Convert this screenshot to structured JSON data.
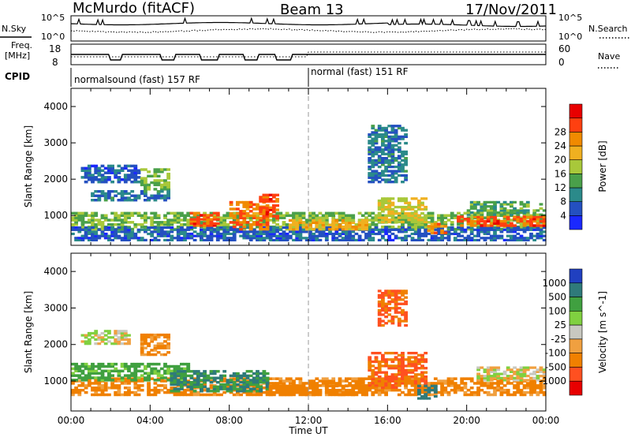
{
  "header": {
    "station": "McMurdo (fitACF)",
    "beam": "Beam 13",
    "date": "17/Nov/2011"
  },
  "top_panels": {
    "nsky_label": "N.Sky",
    "nsky_ticks": [
      "10^5",
      "10^0"
    ],
    "nsearch_label": "N.Search",
    "nsearch_ticks": [
      "10^5",
      "10^0"
    ],
    "freq_label": "Freq.",
    "freq_unit": "[MHz]",
    "freq_ticks": [
      "18",
      "8"
    ],
    "nave_label": "Nave",
    "nave_ticks": [
      "60",
      "0"
    ],
    "cpid_label": "CPID",
    "cpid_segments": [
      {
        "label": "normalsound (fast) 157 RF",
        "start_hour": 0
      },
      {
        "label": "normal (fast) 151 RF",
        "start_hour": 12
      }
    ]
  },
  "x_axis": {
    "label": "Time UT",
    "ticks": [
      "00:00",
      "04:00",
      "08:00",
      "12:00",
      "16:00",
      "20:00",
      "00:00"
    ]
  },
  "chart_data": [
    {
      "type": "heatmap",
      "title": "",
      "ylabel": "Slant Range [km]",
      "xlabel": "Time UT",
      "xlim": [
        0,
        24
      ],
      "ylim": [
        180,
        4500
      ],
      "yticks": [
        "1000",
        "2000",
        "3000",
        "4000"
      ],
      "colorbar_label": "Power [dB]",
      "colorbar_ticks": [
        "4",
        "8",
        "12",
        "16",
        "20",
        "24",
        "28"
      ],
      "colorbar_colors": [
        "#1a28ff",
        "#2450c0",
        "#2b8a8a",
        "#4aa04a",
        "#a8c83a",
        "#f0b020",
        "#f08a00",
        "#ff4010",
        "#e80000"
      ],
      "regions": [
        {
          "t": [
            0.0,
            24.0
          ],
          "r": [
            600,
            1100
          ],
          "v": 14
        },
        {
          "t": [
            0.0,
            24.0
          ],
          "r": [
            300,
            700
          ],
          "v": 6
        },
        {
          "t": [
            0.5,
            3.5
          ],
          "r": [
            1900,
            2400
          ],
          "v": 6
        },
        {
          "t": [
            3.5,
            5.0
          ],
          "r": [
            1700,
            2300
          ],
          "v": 14
        },
        {
          "t": [
            1.0,
            5.0
          ],
          "r": [
            1400,
            1700
          ],
          "v": 8
        },
        {
          "t": [
            6.0,
            7.5
          ],
          "r": [
            700,
            1100
          ],
          "v": 26
        },
        {
          "t": [
            8.0,
            10.0
          ],
          "r": [
            600,
            1400
          ],
          "v": 24
        },
        {
          "t": [
            9.5,
            10.5
          ],
          "r": [
            900,
            1600
          ],
          "v": 26
        },
        {
          "t": [
            15.0,
            17.0
          ],
          "r": [
            1900,
            3500
          ],
          "v": 8
        },
        {
          "t": [
            15.5,
            18.0
          ],
          "r": [
            800,
            1500
          ],
          "v": 18
        },
        {
          "t": [
            18.0,
            19.0
          ],
          "r": [
            500,
            800
          ],
          "v": 24
        },
        {
          "t": [
            19.5,
            24.0
          ],
          "r": [
            700,
            1000
          ],
          "v": 26
        },
        {
          "t": [
            20.0,
            24.0
          ],
          "r": [
            1000,
            1400
          ],
          "v": 12
        },
        {
          "t": [
            11.0,
            15.0
          ],
          "r": [
            600,
            900
          ],
          "v": 20
        }
      ]
    },
    {
      "type": "heatmap",
      "title": "",
      "ylabel": "Slant Range [km]",
      "xlabel": "Time UT",
      "xlim": [
        0,
        24
      ],
      "ylim": [
        180,
        4500
      ],
      "yticks": [
        "1000",
        "2000",
        "3000",
        "4000"
      ],
      "colorbar_label": "Velocity [m s^-1]",
      "colorbar_ticks": [
        "1000",
        "500",
        "100",
        "25",
        "-25",
        "-100",
        "-500",
        "-1000"
      ],
      "colorbar_colors": [
        "#2040c0",
        "#2f7a7a",
        "#40a040",
        "#80d040",
        "#c8c8c0",
        "#f0a040",
        "#f08000",
        "#ff5020",
        "#e80000"
      ],
      "regions": [
        {
          "t": [
            0.0,
            24.0
          ],
          "r": [
            600,
            1100
          ],
          "v": -100
        },
        {
          "t": [
            0.0,
            6.0
          ],
          "r": [
            1000,
            1500
          ],
          "v": 100
        },
        {
          "t": [
            0.5,
            3.0
          ],
          "r": [
            2000,
            2400
          ],
          "v": 0
        },
        {
          "t": [
            3.5,
            5.0
          ],
          "r": [
            1700,
            2300
          ],
          "v": -100
        },
        {
          "t": [
            5.0,
            10.0
          ],
          "r": [
            700,
            1300
          ],
          "v": 300
        },
        {
          "t": [
            15.0,
            18.0
          ],
          "r": [
            800,
            1800
          ],
          "v": -300
        },
        {
          "t": [
            15.5,
            17.0
          ],
          "r": [
            2500,
            3500
          ],
          "v": -300
        },
        {
          "t": [
            17.5,
            18.5
          ],
          "r": [
            500,
            900
          ],
          "v": 600
        },
        {
          "t": [
            20.5,
            24.0
          ],
          "r": [
            1000,
            1400
          ],
          "v": 0
        },
        {
          "t": [
            10.0,
            15.0
          ],
          "r": [
            600,
            900
          ],
          "v": -200
        }
      ]
    }
  ]
}
